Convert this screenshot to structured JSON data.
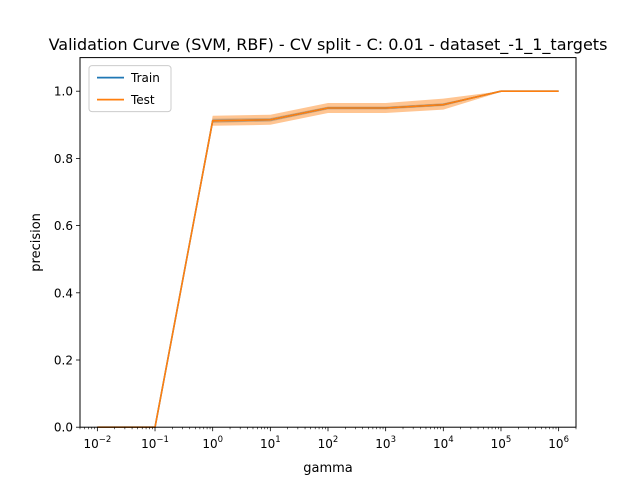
{
  "chart_data": {
    "type": "line",
    "title": "Validation Curve (SVM, RBF) - CV split - C: 0.01 - dataset_-1_1_targets",
    "xlabel": "gamma",
    "ylabel": "precision",
    "xscale": "log",
    "xlim": [
      0.005,
      2000000
    ],
    "ylim": [
      0.0,
      1.1
    ],
    "x": [
      0.01,
      0.1,
      1,
      10,
      100,
      1000,
      10000,
      100000,
      1000000
    ],
    "xtick_labels": [
      {
        "base": "10",
        "exp": "−2"
      },
      {
        "base": "10",
        "exp": "−1"
      },
      {
        "base": "10",
        "exp": "0"
      },
      {
        "base": "10",
        "exp": "1"
      },
      {
        "base": "10",
        "exp": "2"
      },
      {
        "base": "10",
        "exp": "3"
      },
      {
        "base": "10",
        "exp": "4"
      },
      {
        "base": "10",
        "exp": "5"
      },
      {
        "base": "10",
        "exp": "6"
      }
    ],
    "yticks": [
      "0.0",
      "0.2",
      "0.4",
      "0.6",
      "0.8",
      "1.0"
    ],
    "grid": false,
    "legend_position": "top-left",
    "series": [
      {
        "name": "Train",
        "color": "#1f77b4",
        "values": [
          0.0,
          0.0,
          0.912,
          0.915,
          0.95,
          0.95,
          0.96,
          1.0,
          1.0
        ],
        "band_low": [
          0.0,
          0.0,
          0.906,
          0.91,
          0.946,
          0.946,
          0.956,
          0.999,
          1.0
        ],
        "band_high": [
          0.0,
          0.0,
          0.918,
          0.92,
          0.954,
          0.954,
          0.964,
          1.0,
          1.0
        ]
      },
      {
        "name": "Test",
        "color": "#ff7f0e",
        "values": [
          0.0,
          0.0,
          0.912,
          0.915,
          0.95,
          0.95,
          0.96,
          1.0,
          1.0
        ],
        "band_low": [
          0.0,
          0.0,
          0.897,
          0.9,
          0.935,
          0.935,
          0.945,
          0.998,
          1.0
        ],
        "band_high": [
          0.0,
          0.0,
          0.927,
          0.93,
          0.965,
          0.965,
          0.978,
          1.0,
          1.0
        ]
      }
    ]
  }
}
